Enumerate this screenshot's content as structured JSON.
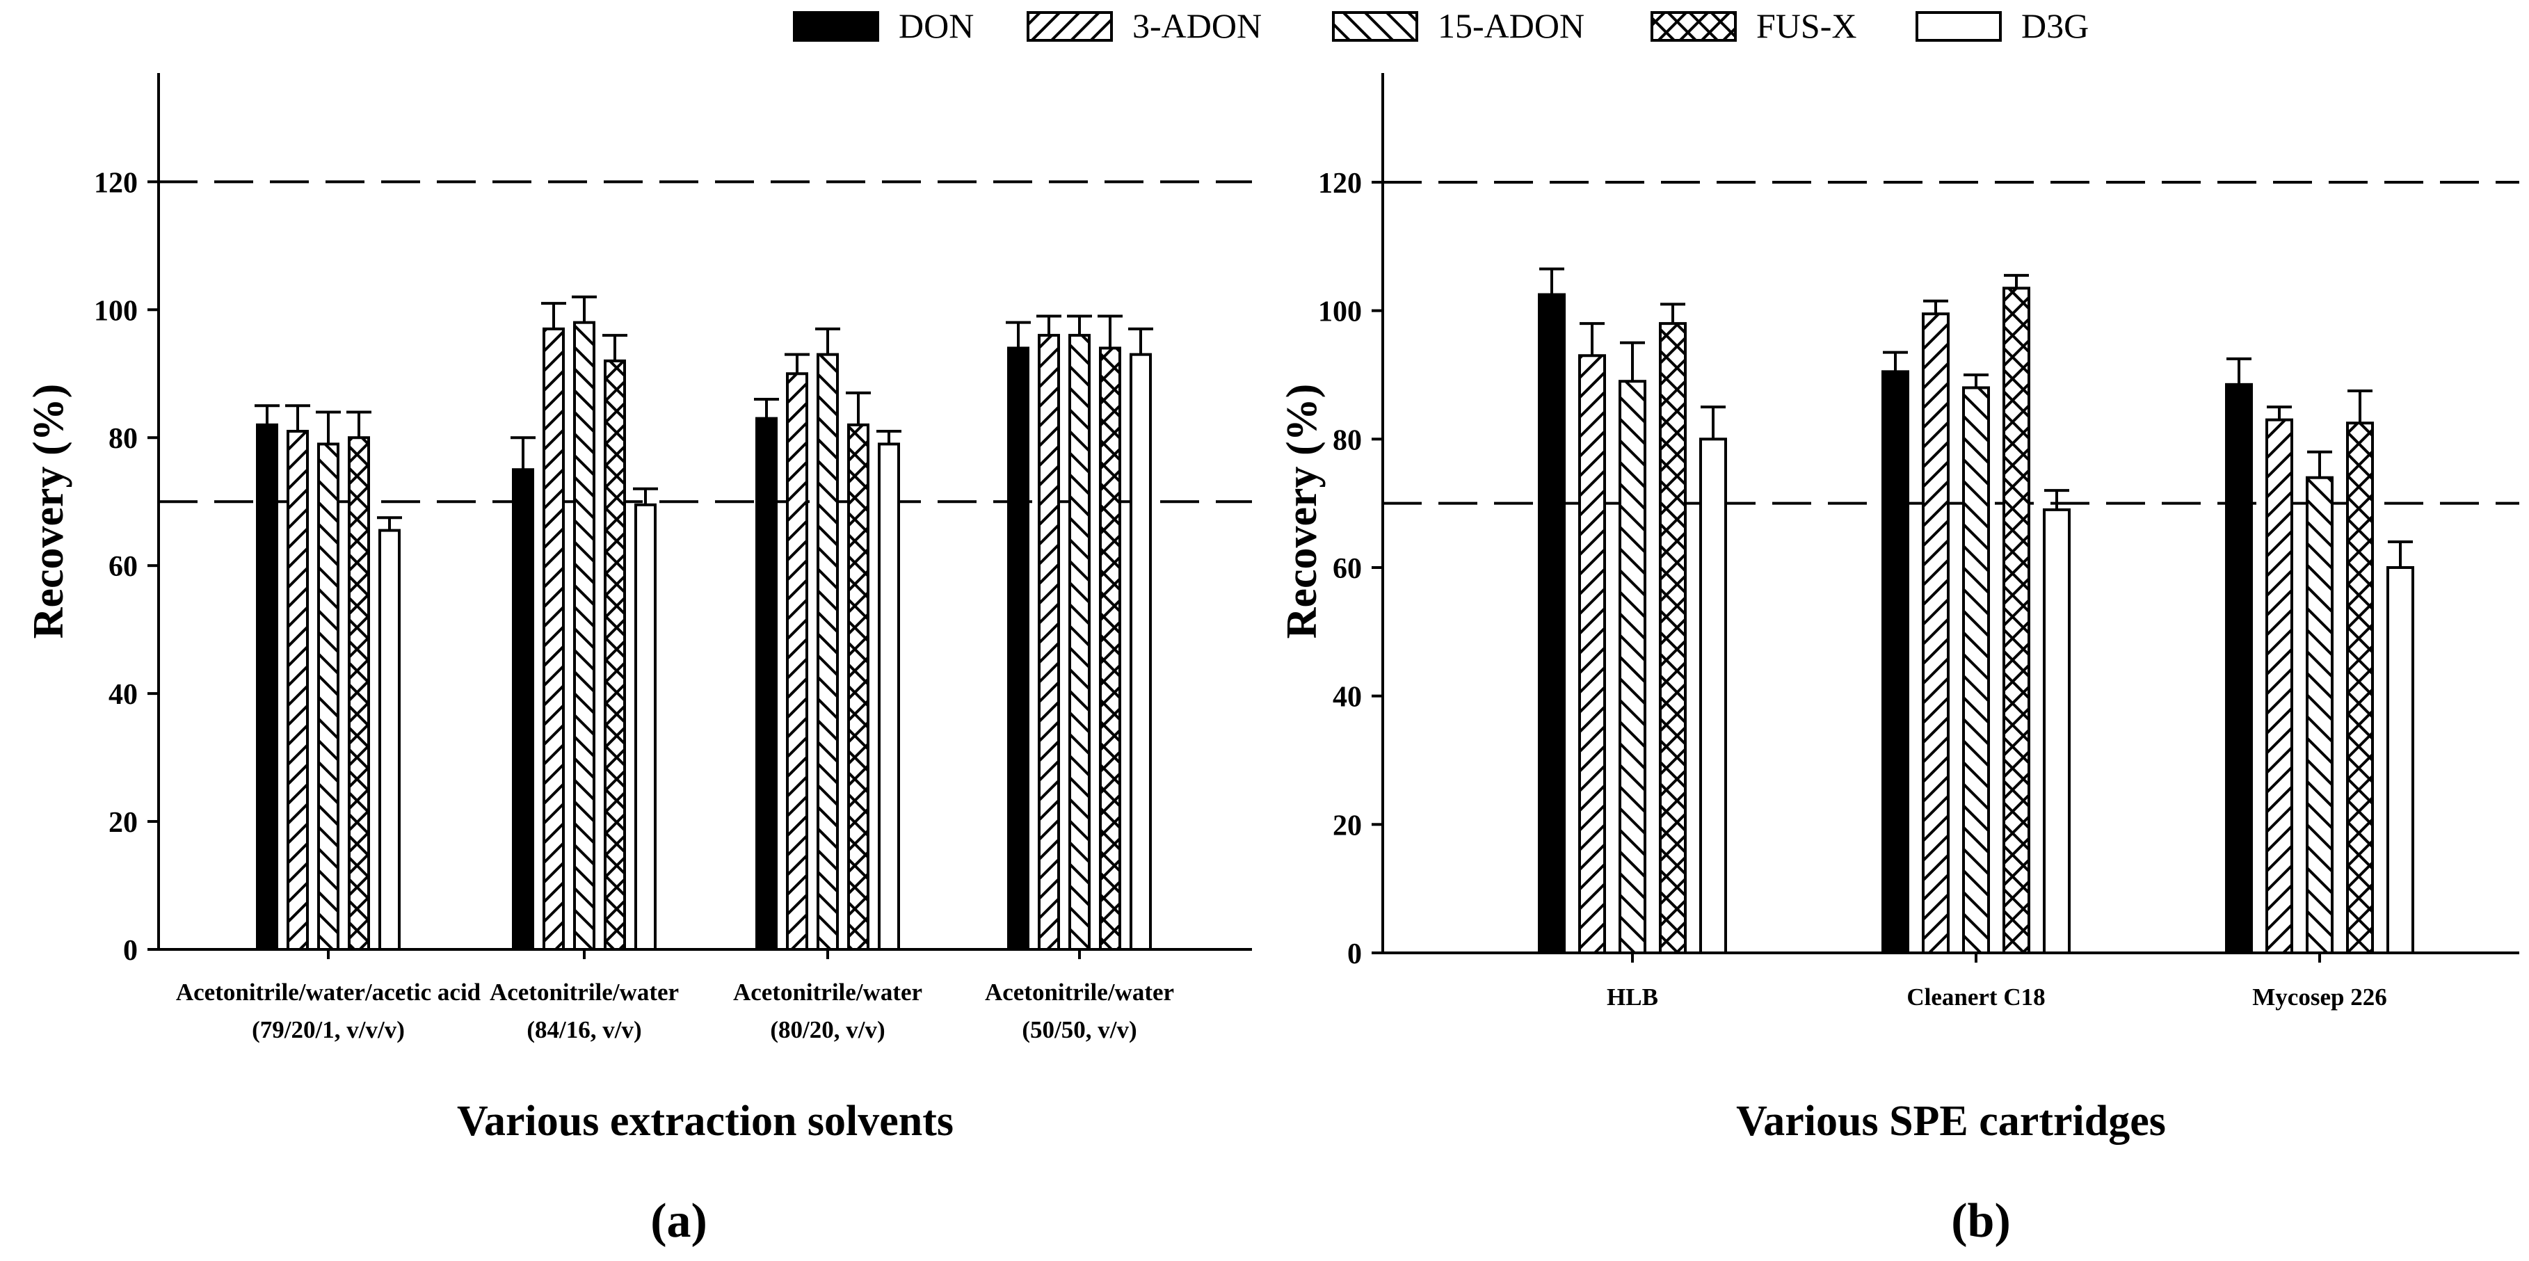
{
  "legend": [
    {
      "label": "DON",
      "fill": "solid"
    },
    {
      "label": "3-ADON",
      "fill": "hatch-fwd"
    },
    {
      "label": "15-ADON",
      "fill": "hatch-back"
    },
    {
      "label": "FUS-X",
      "fill": "crosshatch"
    },
    {
      "label": "D3G",
      "fill": "empty"
    }
  ],
  "colors": {
    "bar_solid": "#000000",
    "background": "#ffffff",
    "pattern": "#000000"
  },
  "chart_data": [
    {
      "type": "bar",
      "panel_label": "(a)",
      "xlabel": "Various extraction solvents",
      "ylabel": "Recovery (%)",
      "ylim": [
        0,
        137
      ],
      "yticks": [
        0,
        20,
        40,
        60,
        80,
        100,
        120
      ],
      "reference_lines": [
        70,
        120
      ],
      "grid": false,
      "legend_placement": "top-center",
      "categories": [
        [
          "Acetonitrile/water/acetic acid",
          "(79/20/1, v/v/v)"
        ],
        [
          "Acetonitrile/water",
          "(84/16, v/v)"
        ],
        [
          "Acetonitrile/water",
          "(80/20, v/v)"
        ],
        [
          "Acetonitrile/water",
          "(50/50, v/v)"
        ]
      ],
      "series": [
        {
          "name": "DON",
          "values": [
            82,
            75,
            83,
            94
          ],
          "errors": [
            3,
            5,
            3,
            4
          ]
        },
        {
          "name": "3-ADON",
          "values": [
            81,
            97,
            90,
            96
          ],
          "errors": [
            4,
            4,
            3,
            3
          ]
        },
        {
          "name": "15-ADON",
          "values": [
            79,
            98,
            93,
            96
          ],
          "errors": [
            5,
            4,
            4,
            3
          ]
        },
        {
          "name": "FUS-X",
          "values": [
            80,
            92,
            82,
            94
          ],
          "errors": [
            4,
            4,
            5,
            5
          ]
        },
        {
          "name": "D3G",
          "values": [
            65.5,
            69.5,
            79,
            93
          ],
          "errors": [
            2,
            2.5,
            2,
            4
          ]
        }
      ]
    },
    {
      "type": "bar",
      "panel_label": "(b)",
      "xlabel": "Various SPE cartridges",
      "ylabel": "Recovery (%)",
      "ylim": [
        0,
        137
      ],
      "yticks": [
        0,
        20,
        40,
        60,
        80,
        100,
        120
      ],
      "reference_lines": [
        70,
        120
      ],
      "grid": false,
      "legend_placement": "top-center",
      "categories": [
        [
          "HLB"
        ],
        [
          "Cleanert C18"
        ],
        [
          "Mycosep 226"
        ]
      ],
      "series": [
        {
          "name": "DON",
          "values": [
            102.5,
            90.5,
            88.5
          ],
          "errors": [
            4,
            3,
            4
          ]
        },
        {
          "name": "3-ADON",
          "values": [
            93,
            99.5,
            83
          ],
          "errors": [
            5,
            2,
            2
          ]
        },
        {
          "name": "15-ADON",
          "values": [
            89,
            88,
            74
          ],
          "errors": [
            6,
            2,
            4
          ]
        },
        {
          "name": "FUS-X",
          "values": [
            98,
            103.5,
            82.5
          ],
          "errors": [
            3,
            2,
            5
          ]
        },
        {
          "name": "D3G",
          "values": [
            80,
            69,
            60
          ],
          "errors": [
            5,
            3,
            4
          ]
        }
      ]
    }
  ]
}
